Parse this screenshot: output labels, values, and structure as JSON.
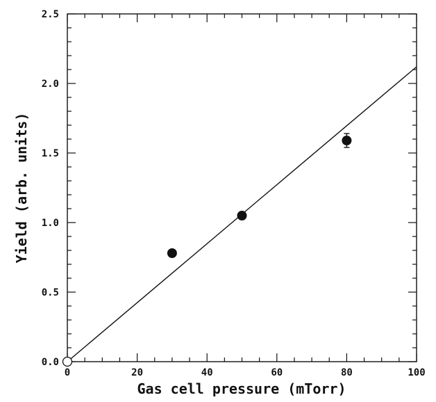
{
  "chart_data": {
    "type": "scatter",
    "title": "",
    "xlabel": "Gas cell pressure (mTorr)",
    "ylabel": "Yield (arb. units)",
    "xlim": [
      0,
      100
    ],
    "ylim": [
      0.0,
      2.5
    ],
    "xticks": [
      0,
      20,
      40,
      60,
      80,
      100
    ],
    "xtick_labels": [
      "0",
      "20",
      "40",
      "60",
      "80",
      "100"
    ],
    "yticks": [
      0.0,
      0.5,
      1.0,
      1.5,
      2.0,
      2.5
    ],
    "ytick_labels": [
      "0.0",
      "0.5",
      "1.0",
      "1.5",
      "2.0",
      "2.5"
    ],
    "grid": false,
    "series": [
      {
        "marker": "filled-circle",
        "x": [
          30,
          50,
          80
        ],
        "y": [
          0.78,
          1.05,
          1.59
        ],
        "yerr": [
          0.02,
          0.015,
          0.05
        ]
      },
      {
        "marker": "open-circle",
        "x": [
          0
        ],
        "y": [
          0.0
        ]
      }
    ],
    "fit_line": {
      "x": [
        0,
        100
      ],
      "y": [
        0.0,
        2.12
      ]
    },
    "colors": {
      "ink": "#111111",
      "background": "#ffffff"
    }
  }
}
